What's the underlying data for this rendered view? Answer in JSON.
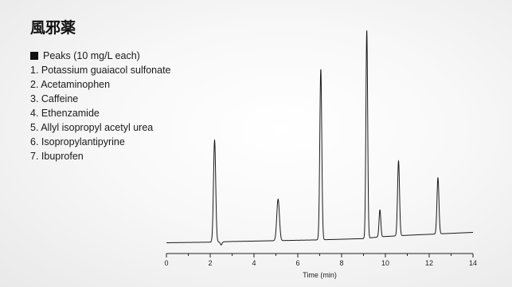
{
  "title": "風邪薬",
  "legend": {
    "header": "Peaks (10 mg/L each)",
    "items": [
      "1. Potassium guaiacol sulfonate",
      "2. Acetaminophen",
      "3. Caffeine",
      "4. Ethenzamide",
      "5. Allyl isopropyl acetyl urea",
      "6. Isopropylantipyrine",
      "7. Ibuprofen"
    ]
  },
  "chart_data": {
    "type": "line",
    "title": "",
    "xlabel": "Time (min)",
    "ylabel": "",
    "xlim": [
      0,
      14
    ],
    "ylim": [
      0,
      100
    ],
    "xticks": [
      0,
      2,
      4,
      6,
      8,
      10,
      12,
      14
    ],
    "grid": false,
    "baseline": [
      [
        0,
        0
      ],
      [
        2.1,
        0.3
      ],
      [
        3,
        0.6
      ],
      [
        5,
        1.0
      ],
      [
        7,
        1.4
      ],
      [
        9,
        2.0
      ],
      [
        9.8,
        2.9
      ],
      [
        11,
        3.6
      ],
      [
        12.5,
        4.3
      ],
      [
        14,
        5.0
      ]
    ],
    "peaks": [
      {
        "rt": 2.2,
        "height": 49,
        "width": 0.05
      },
      {
        "rt": 5.1,
        "height": 20,
        "width": 0.06
      },
      {
        "rt": 7.05,
        "height": 82,
        "width": 0.045
      },
      {
        "rt": 9.15,
        "height": 100,
        "width": 0.04
      },
      {
        "rt": 9.75,
        "height": 13,
        "width": 0.04
      },
      {
        "rt": 10.6,
        "height": 36,
        "width": 0.045
      },
      {
        "rt": 12.4,
        "height": 27,
        "width": 0.045
      }
    ],
    "dips": [
      {
        "rt": 2.5,
        "depth": 1.5,
        "width": 0.04
      }
    ]
  }
}
